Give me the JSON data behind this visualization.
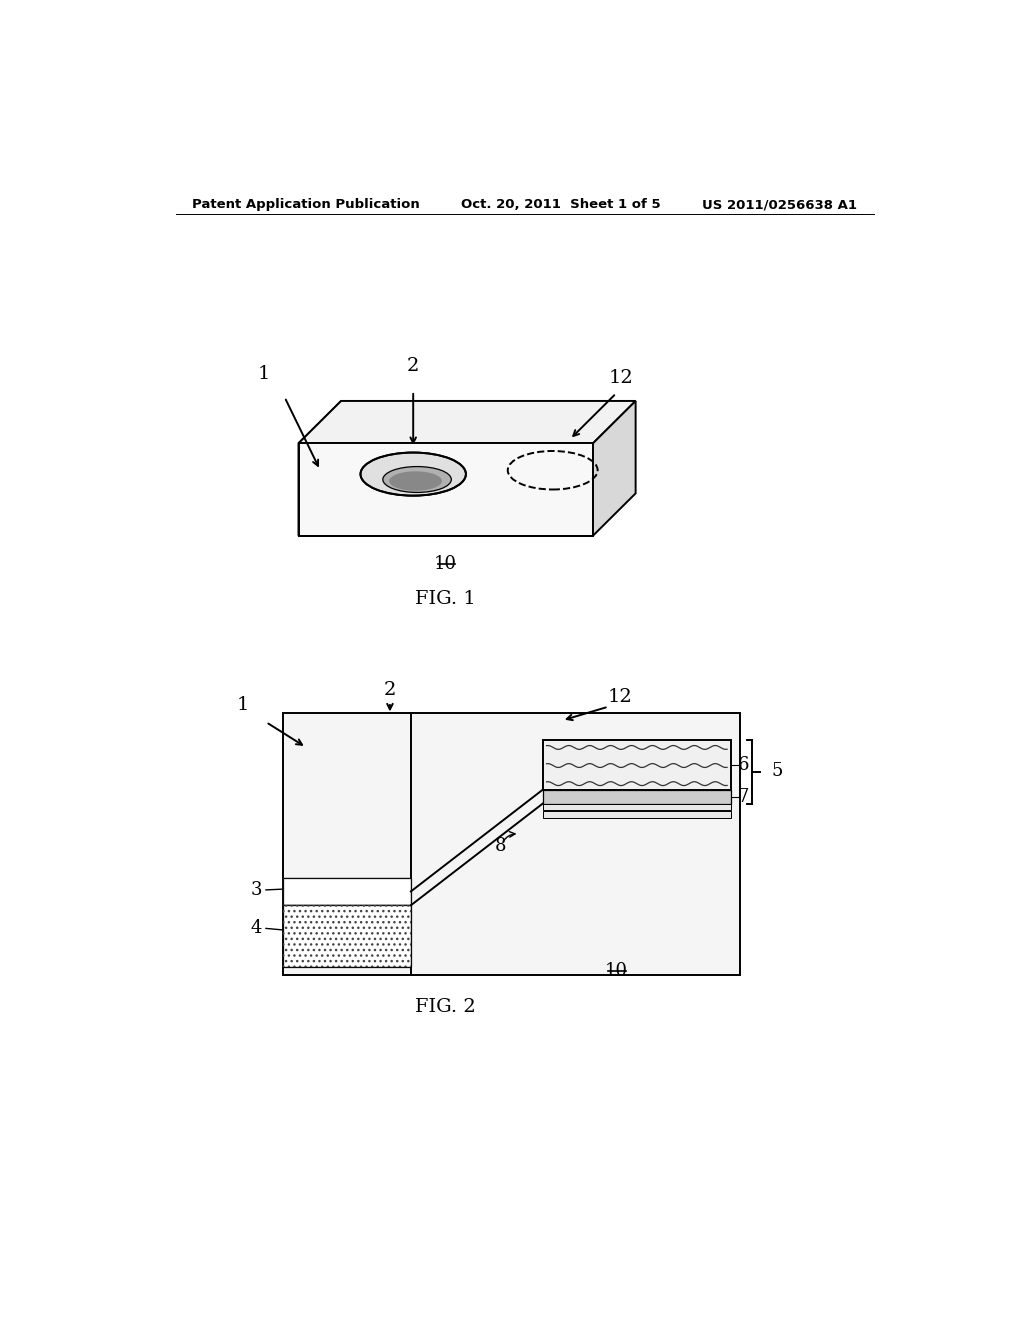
{
  "header_left": "Patent Application Publication",
  "header_mid": "Oct. 20, 2011  Sheet 1 of 5",
  "header_right": "US 2011/0256638 A1",
  "fig1_label": "FIG. 1",
  "fig2_label": "FIG. 2",
  "bg_color": "#ffffff",
  "line_color": "#000000"
}
